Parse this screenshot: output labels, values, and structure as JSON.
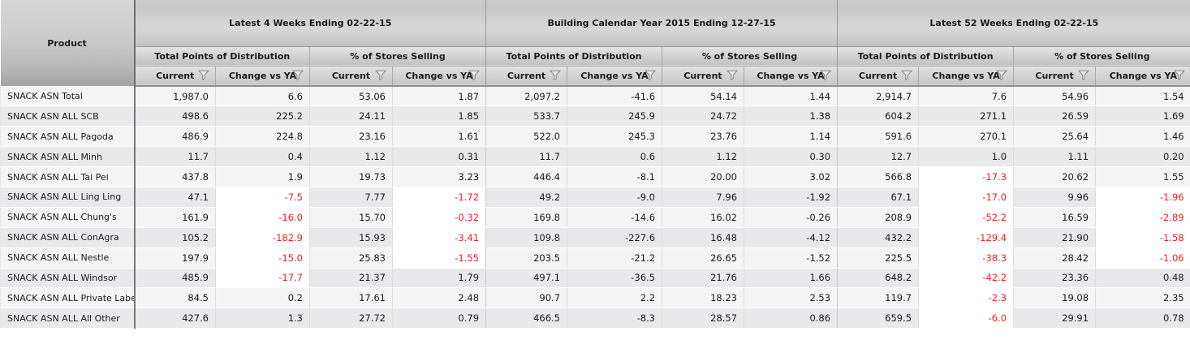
{
  "table": {
    "product_header": "Product",
    "groups": [
      {
        "title": "Latest 4 Weeks Ending 02-22-15"
      },
      {
        "title": "Building Calendar Year 2015 Ending 12-27-15"
      },
      {
        "title": "Latest 52 Weeks Ending 02-22-15"
      }
    ],
    "subgroups": [
      "Total Points of Distribution",
      "% of Stores Selling"
    ],
    "measure_headers": [
      "Current",
      "Change vs YA"
    ],
    "icons": {
      "filter": "funnel-icon"
    },
    "colors": {
      "negative_text": "#f01e1e",
      "negative_bg": "#ffffff",
      "row_odd": "#f4f4f5",
      "row_even": "#e9e9ec",
      "product_divider": "#6f6f6f"
    },
    "conditional_format": {
      "rule": "negative-values-red-on-white",
      "red_change_columns": [
        1,
        3,
        9,
        11
      ]
    },
    "rows": [
      {
        "product": "SNACK ASN Total",
        "values": [
          "1,987.0",
          "6.6",
          "53.06",
          "1.87",
          "2,097.2",
          "-41.6",
          "54.14",
          "1.44",
          "2,914.7",
          "7.6",
          "54.96",
          "1.54"
        ]
      },
      {
        "product": "SNACK ASN ALL SCB",
        "values": [
          "498.6",
          "225.2",
          "24.11",
          "1.85",
          "533.7",
          "245.9",
          "24.72",
          "1.38",
          "604.2",
          "271.1",
          "26.59",
          "1.69"
        ]
      },
      {
        "product": "SNACK ASN ALL Pagoda",
        "values": [
          "486.9",
          "224.8",
          "23.16",
          "1.61",
          "522.0",
          "245.3",
          "23.76",
          "1.14",
          "591.6",
          "270.1",
          "25.64",
          "1.46"
        ]
      },
      {
        "product": "SNACK ASN ALL Minh",
        "values": [
          "11.7",
          "0.4",
          "1.12",
          "0.31",
          "11.7",
          "0.6",
          "1.12",
          "0.30",
          "12.7",
          "1.0",
          "1.11",
          "0.20"
        ]
      },
      {
        "product": "SNACK ASN ALL Tai Pei",
        "values": [
          "437.8",
          "1.9",
          "19.73",
          "3.23",
          "446.4",
          "-8.1",
          "20.00",
          "3.02",
          "566.8",
          "-17.3",
          "20.62",
          "1.55"
        ]
      },
      {
        "product": "SNACK ASN ALL Ling Ling",
        "values": [
          "47.1",
          "-7.5",
          "7.77",
          "-1.72",
          "49.2",
          "-9.0",
          "7.96",
          "-1.92",
          "67.1",
          "-17.0",
          "9.96",
          "-1.96"
        ]
      },
      {
        "product": "SNACK ASN ALL Chung's",
        "values": [
          "161.9",
          "-16.0",
          "15.70",
          "-0.32",
          "169.8",
          "-14.6",
          "16.02",
          "-0.26",
          "208.9",
          "-52.2",
          "16.59",
          "-2.89"
        ]
      },
      {
        "product": "SNACK ASN ALL ConAgra",
        "values": [
          "105.2",
          "-182.9",
          "15.93",
          "-3.41",
          "109.8",
          "-227.6",
          "16.48",
          "-4.12",
          "432.2",
          "-129.4",
          "21.90",
          "-1.58"
        ]
      },
      {
        "product": "SNACK ASN ALL Nestle",
        "values": [
          "197.9",
          "-15.0",
          "25.83",
          "-1.55",
          "203.5",
          "-21.2",
          "26.65",
          "-1.52",
          "225.5",
          "-38.3",
          "28.42",
          "-1.06"
        ]
      },
      {
        "product": "SNACK ASN ALL Windsor",
        "values": [
          "485.9",
          "-17.7",
          "21.37",
          "1.79",
          "497.1",
          "-36.5",
          "21.76",
          "1.66",
          "648.2",
          "-42.2",
          "23.36",
          "0.48"
        ]
      },
      {
        "product": "SNACK ASN ALL Private Label",
        "values": [
          "84.5",
          "0.2",
          "17.61",
          "2.48",
          "90.7",
          "2.2",
          "18.23",
          "2.53",
          "119.7",
          "-2.3",
          "19.08",
          "2.35"
        ]
      },
      {
        "product": "SNACK ASN ALL All Other",
        "values": [
          "427.6",
          "1.3",
          "27.72",
          "0.79",
          "466.5",
          "-8.3",
          "28.57",
          "0.86",
          "659.5",
          "-6.0",
          "29.91",
          "0.78"
        ]
      }
    ]
  }
}
